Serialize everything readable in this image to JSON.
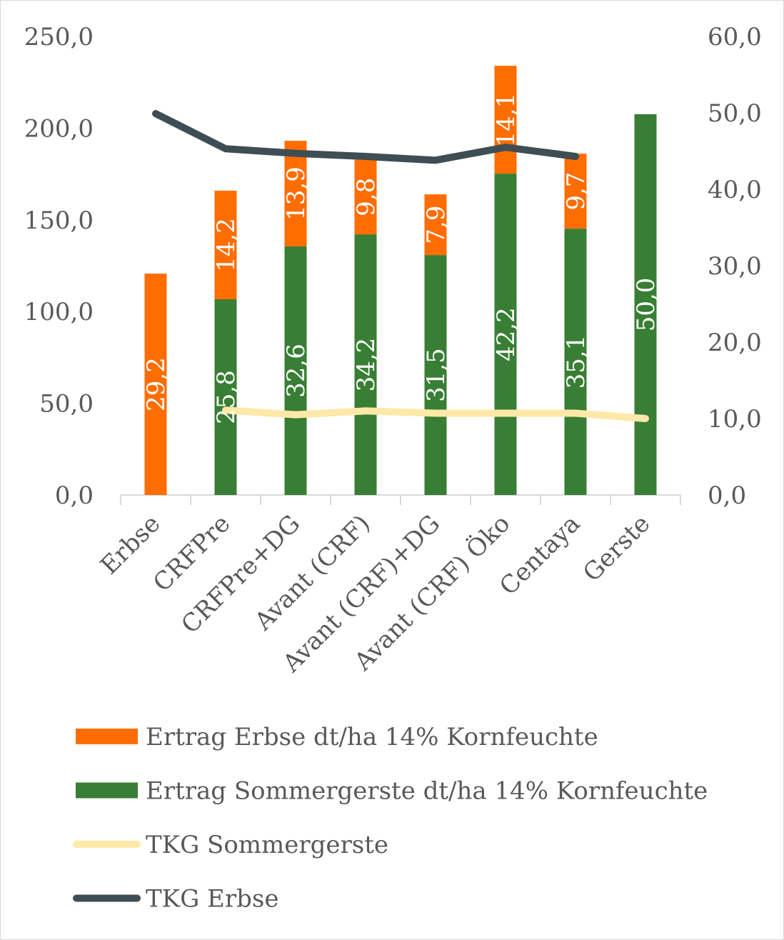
{
  "chart_data": {
    "type": "bar",
    "stacked": true,
    "categories": [
      "Erbse",
      "CRFPre",
      "CRFPre+DG",
      "Avant (CRF)",
      "Avant (CRF)+DG",
      "Avant (CRF) Öko",
      "Centaya",
      "Gerste"
    ],
    "left_axis": {
      "min": 0,
      "max": 250,
      "ticks": [
        "0,0",
        "50,0",
        "100,0",
        "150,0",
        "200,0",
        "250,0"
      ]
    },
    "right_axis": {
      "min": 0,
      "max": 60,
      "ticks": [
        "0,0",
        "10,0",
        "20,0",
        "30,0",
        "40,0",
        "50,0",
        "60,0"
      ]
    },
    "grid": false,
    "legend_position": "bottom",
    "series": [
      {
        "name": "Ertrag Sommergerste dt/ha 14% Kornfeuchte",
        "kind": "bar",
        "axis": "left",
        "color": "#387E34",
        "values": [
          null,
          106.7,
          135.5,
          142.1,
          130.8,
          175.2,
          145.2,
          207.6
        ],
        "labels": [
          null,
          "25,8",
          "32,6",
          "34,2",
          "31,5",
          "42,2",
          "35,1",
          "50,0"
        ]
      },
      {
        "name": "Ertrag Erbse dt/ha 14% Kornfeuchte",
        "kind": "bar",
        "axis": "left",
        "color": "#FF6D00",
        "values": [
          120.7,
          59.2,
          57.6,
          40.7,
          33.1,
          58.8,
          40.9,
          null
        ],
        "labels": [
          "29,2",
          "14,2",
          "13,9",
          "9,8",
          "7,9",
          "14,1",
          "9,7",
          null
        ]
      },
      {
        "name": "TKG Sommergerste",
        "kind": "line",
        "axis": "right",
        "color": "#FFE8A8",
        "values": [
          null,
          11.1,
          10.5,
          11.0,
          10.7,
          10.7,
          10.7,
          10.0
        ]
      },
      {
        "name": "TKG Erbse",
        "kind": "line",
        "axis": "right",
        "color": "#3F4D55",
        "values": [
          49.9,
          45.3,
          44.7,
          44.3,
          43.8,
          45.5,
          44.3,
          null
        ]
      }
    ],
    "legend_order": [
      1,
      0,
      2,
      3
    ]
  }
}
